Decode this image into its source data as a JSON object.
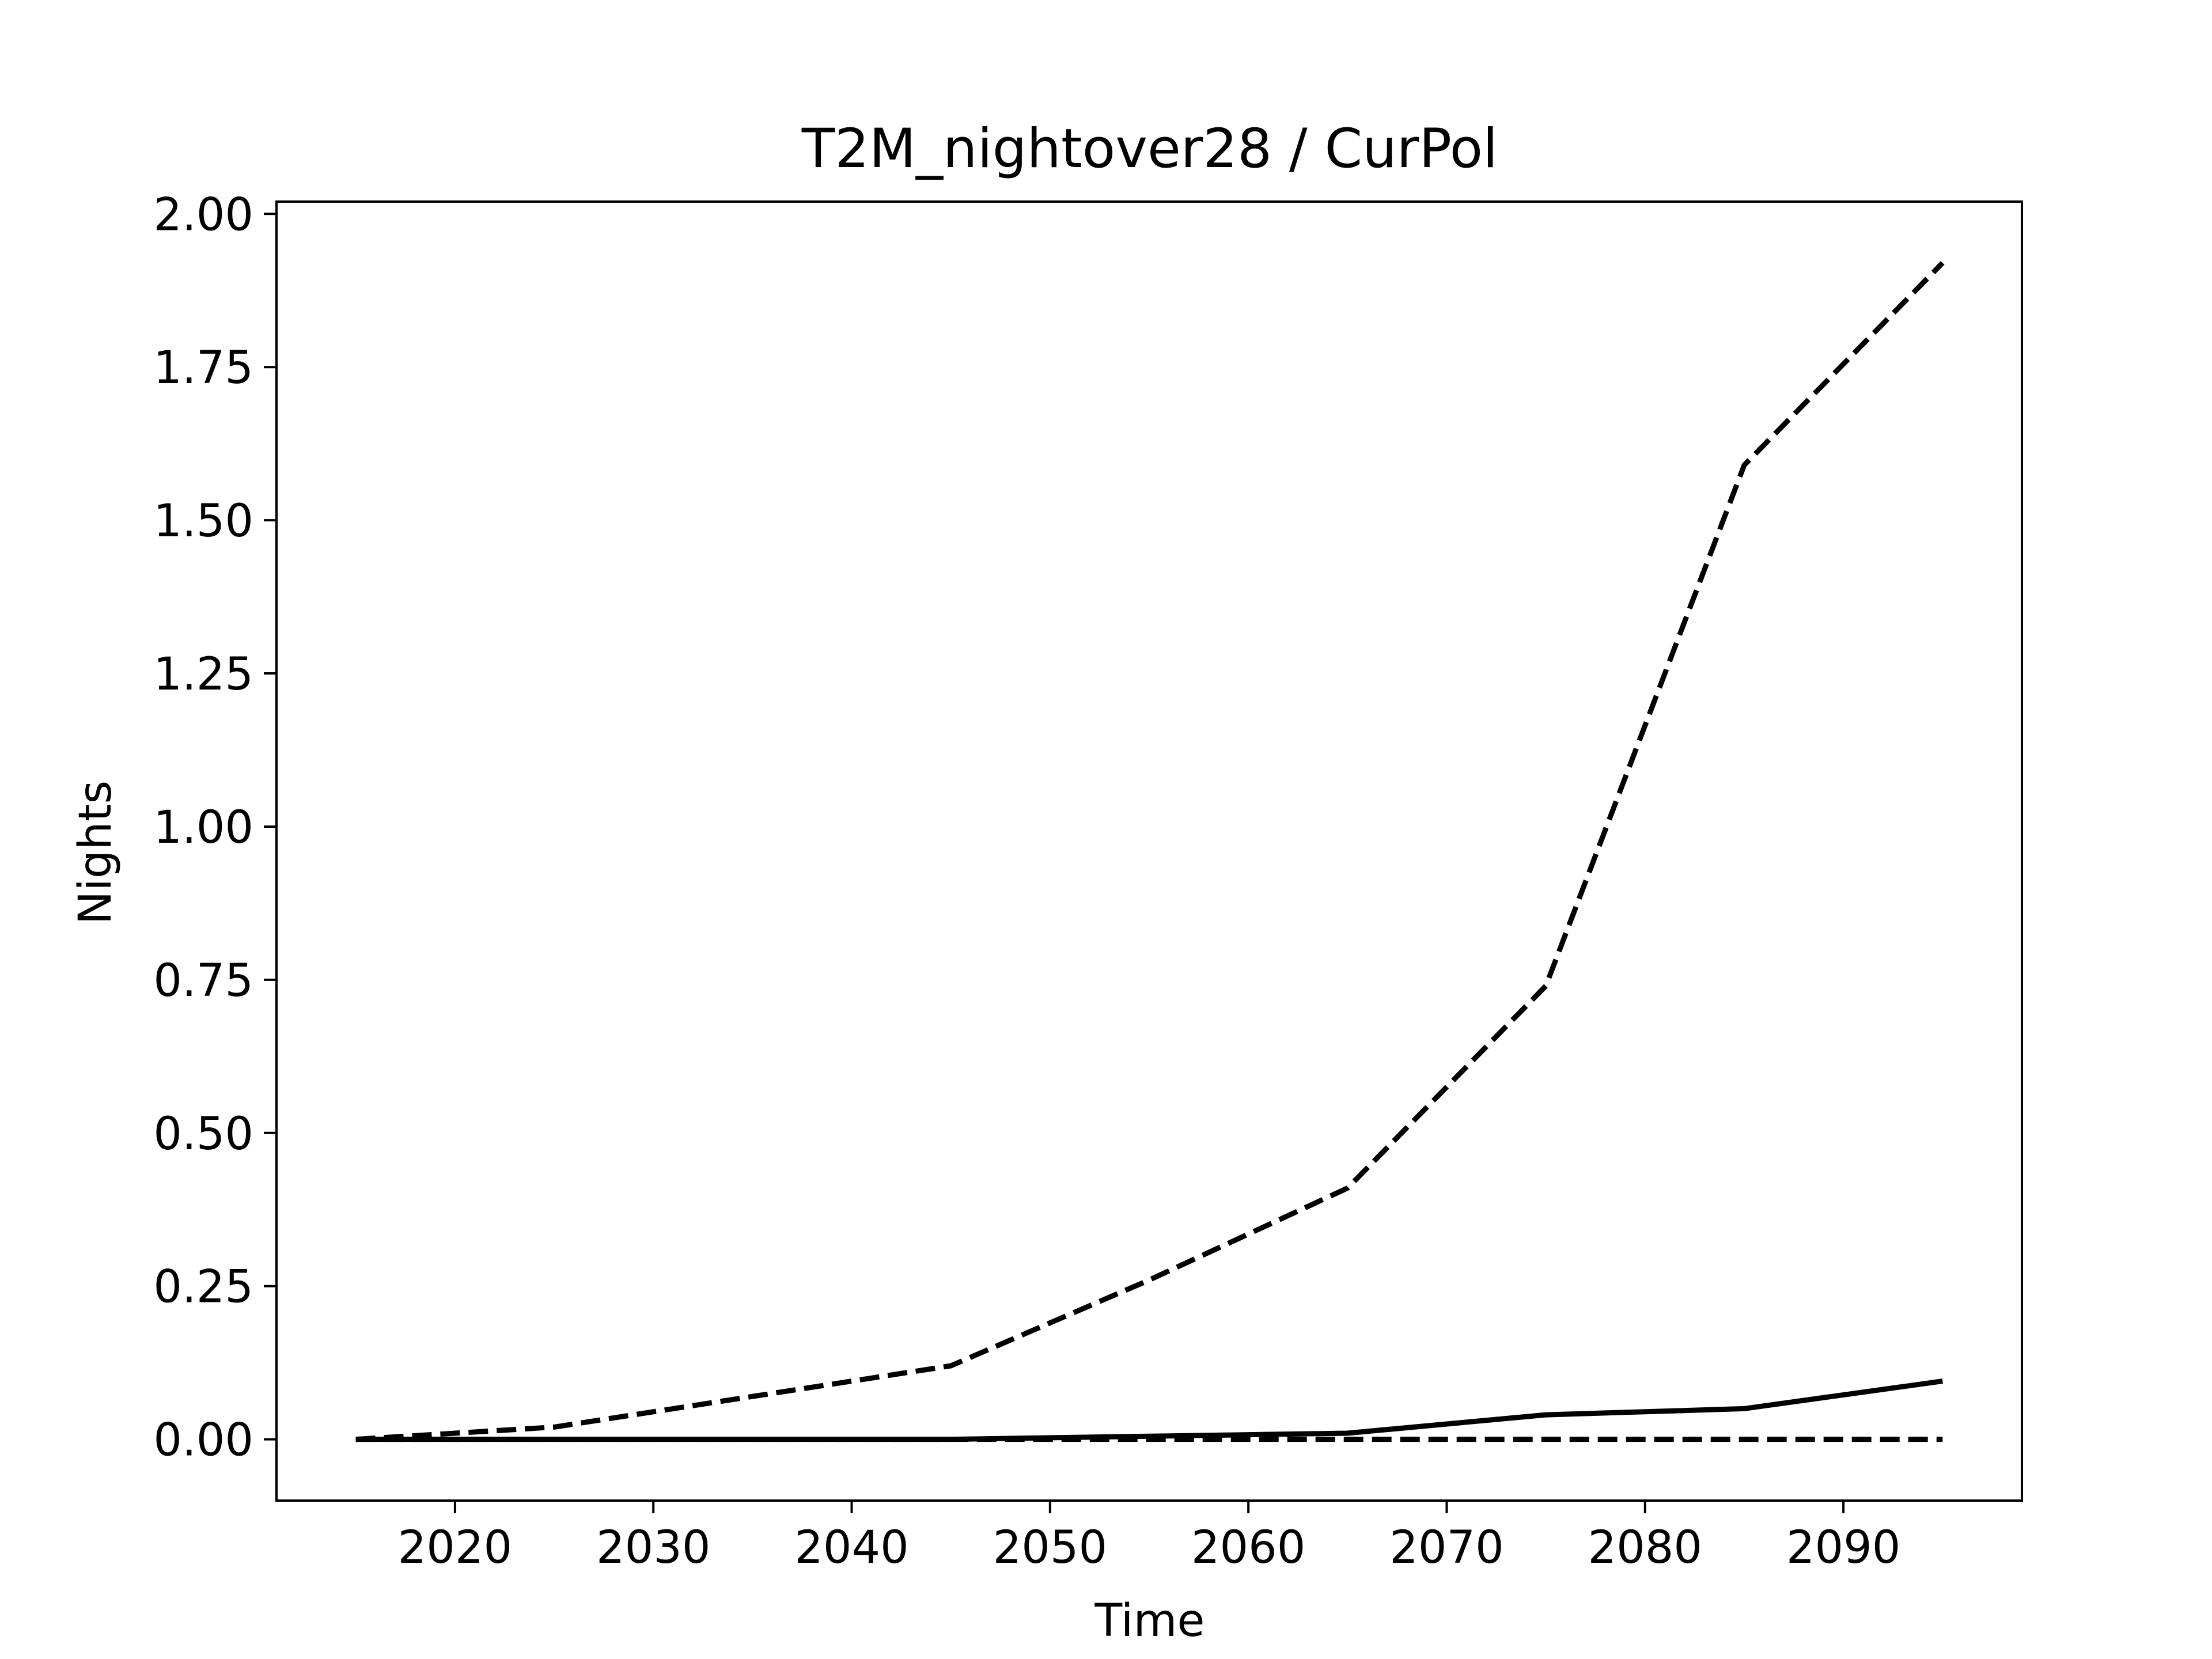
{
  "chart_data": {
    "type": "line",
    "title": "T2M_nightover28 / CurPol",
    "xlabel": "Time",
    "ylabel": "Nights",
    "xlim": [
      2011,
      2099
    ],
    "ylim": [
      -0.1,
      2.02
    ],
    "x_ticks": [
      {
        "value": 2020,
        "label": "2020"
      },
      {
        "value": 2030,
        "label": "2030"
      },
      {
        "value": 2040,
        "label": "2040"
      },
      {
        "value": 2050,
        "label": "2050"
      },
      {
        "value": 2060,
        "label": "2060"
      },
      {
        "value": 2070,
        "label": "2070"
      },
      {
        "value": 2080,
        "label": "2080"
      },
      {
        "value": 2090,
        "label": "2090"
      }
    ],
    "y_ticks": [
      {
        "value": 0.0,
        "label": "0.00"
      },
      {
        "value": 0.25,
        "label": "0.25"
      },
      {
        "value": 0.5,
        "label": "0.50"
      },
      {
        "value": 0.75,
        "label": "0.75"
      },
      {
        "value": 1.0,
        "label": "1.00"
      },
      {
        "value": 1.25,
        "label": "1.25"
      },
      {
        "value": 1.5,
        "label": "1.50"
      },
      {
        "value": 1.75,
        "label": "1.75"
      },
      {
        "value": 2.0,
        "label": "2.00"
      }
    ],
    "grid": false,
    "x": [
      2015,
      2025,
      2035,
      2045,
      2055,
      2065,
      2075,
      2085,
      2095
    ],
    "series": [
      {
        "style": "dashed",
        "color": "#000000",
        "values": [
          0.0,
          0.02,
          0.07,
          0.12,
          0.26,
          0.41,
          0.74,
          1.59,
          1.92
        ]
      },
      {
        "style": "solid",
        "color": "#000000",
        "values": [
          0.0,
          0.0,
          0.0,
          0.0,
          0.005,
          0.01,
          0.04,
          0.05,
          0.095
        ]
      },
      {
        "style": "dashed",
        "color": "#000000",
        "values": [
          0.0,
          0.0,
          0.0,
          0.0,
          0.0,
          0.0,
          0.0,
          0.0,
          0.0
        ]
      }
    ]
  }
}
